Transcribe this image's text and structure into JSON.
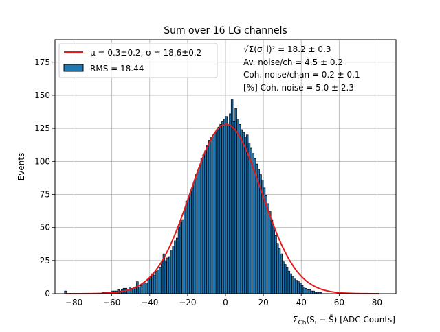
{
  "chart_data": {
    "type": "bar",
    "title": "Sum over 16 LG channels",
    "xlabel": "Σ_Ch(S_i − S̄) [ADC Counts]",
    "ylabel": "Events",
    "xlim": [
      -90,
      90
    ],
    "ylim": [
      0,
      192
    ],
    "xticks": [
      -80,
      -60,
      -40,
      -20,
      0,
      20,
      40,
      60,
      80
    ],
    "yticks": [
      0,
      25,
      50,
      75,
      100,
      125,
      150,
      175
    ],
    "grid": true,
    "legend_position": "upper left",
    "bin_width": 1,
    "histogram": {
      "name": "RMS = 18.44",
      "color": "#1f77b4",
      "edgecolor": "#000000",
      "x_start": -85,
      "counts": [
        2,
        0,
        0,
        0,
        0,
        0,
        0,
        0,
        0,
        0,
        0,
        0,
        0,
        0,
        0,
        0,
        0,
        0,
        0,
        0,
        1,
        1,
        1,
        1,
        1,
        2,
        2,
        2,
        3,
        2,
        3,
        4,
        4,
        3,
        5,
        4,
        4,
        5,
        9,
        5,
        6,
        8,
        8,
        8,
        11,
        13,
        15,
        14,
        17,
        18,
        20,
        24,
        30,
        24,
        27,
        28,
        33,
        36,
        40,
        42,
        50,
        54,
        56,
        64,
        70,
        72,
        76,
        80,
        84,
        90,
        92,
        97,
        102,
        105,
        108,
        112,
        116,
        118,
        120,
        122,
        124,
        126,
        128,
        130,
        132,
        134,
        128,
        136,
        147,
        130,
        140,
        132,
        128,
        124,
        122,
        118,
        120,
        114,
        110,
        106,
        102,
        98,
        94,
        90,
        86,
        80,
        74,
        68,
        62,
        56,
        50,
        44,
        38,
        34,
        30,
        24,
        22,
        20,
        17,
        15,
        13,
        11,
        10,
        9,
        8,
        6,
        5,
        4,
        3,
        3,
        2,
        2,
        1,
        1,
        1,
        1,
        0,
        0,
        0,
        0,
        0,
        0,
        0,
        0,
        1,
        0,
        0,
        0,
        0,
        0,
        0,
        0,
        0,
        0,
        0,
        0,
        0,
        0,
        0,
        0,
        0,
        0,
        0,
        0,
        0,
        0
      ]
    },
    "fit": {
      "name": "μ = 0.3±0.2, σ = 18.6±0.2",
      "color": "#e41a1c",
      "mu": 0.3,
      "sigma": 18.6,
      "amplitude": 128,
      "x_range": [
        -85,
        81
      ]
    },
    "legend": [
      {
        "label": "μ = 0.3±0.2, σ = 18.6±0.2",
        "kind": "line",
        "color": "#e41a1c"
      },
      {
        "label": "RMS = 18.44",
        "kind": "patch",
        "color": "#1f77b4"
      }
    ],
    "annotations": [
      "√Σ(σ_i)² = 18.2 ± 0.3",
      "Av. noise/ch  = 4.5 ± 0.2",
      "Coh. noise/chan  = 0.2 ± 0.1",
      "[%] Coh. noise  = 5.0 ± 2.3"
    ]
  }
}
